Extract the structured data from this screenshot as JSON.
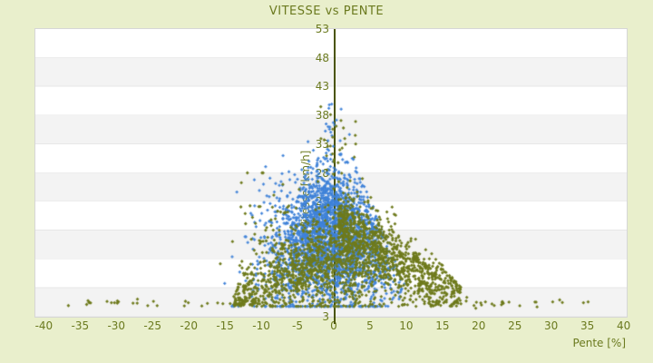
{
  "page": {
    "background": "#e9efcc"
  },
  "chart_data": {
    "type": "scatter",
    "title": "VITESSE vs PENTE",
    "xlabel": "Pente [%]",
    "ylabel": "Vitesse [km/h]",
    "x_range": [
      -41.3,
      40.3
    ],
    "y_range": [
      3,
      53
    ],
    "x_ticks": [
      -40,
      -35,
      -30,
      -25,
      -20,
      -15,
      -10,
      -5,
      0,
      5,
      10,
      15,
      20,
      25,
      30,
      35,
      40
    ],
    "y_ticks": [
      53,
      48,
      43,
      38,
      33,
      28,
      23,
      18,
      13,
      8,
      3
    ],
    "axis_line_x": 0,
    "grid": "horizontal-stripes-per-5-kmh",
    "legend": "none",
    "seed": 1337,
    "colors": {
      "background": "#e9efcc",
      "text": "#6b7a1f",
      "axis_line": "#4a5404",
      "stripe_light": "#ffffff",
      "stripe_dark": "#f3f3f3",
      "stripe_line": "#e7e7e7",
      "plot_border": "#d6d6d6",
      "series_blue": "#3f82d8",
      "series_olive": "#6e7a1c"
    },
    "series": [
      {
        "name": "serie-bleue",
        "color": "#3f82d8",
        "marker": "cross",
        "marker_size": 3.2,
        "components": [
          {
            "kind": "cone",
            "count": 2600,
            "x_center": -0.8,
            "y_mean": 16,
            "y_sd": 6.0,
            "y_min": 4.8,
            "y_max": 41.5,
            "w_top": 42,
            "w_factor": 0.33,
            "w_min": 1.0,
            "x_spread": 0.45,
            "clip_lo": -1.45,
            "clip_hi": 0.95
          },
          {
            "kind": "blob",
            "count": 45,
            "x_mean": -8.5,
            "x_sd": 2.2,
            "y_mean": 23,
            "y_sd": 3.5,
            "x_min": -13.5,
            "x_max": -4,
            "y_min": 15,
            "y_max": 31
          },
          {
            "kind": "blob",
            "count": 10,
            "x_mean": -0.2,
            "x_sd": 1.0,
            "y_mean": 36,
            "y_sd": 2.5,
            "x_min": -3,
            "x_max": 3,
            "y_min": 32,
            "y_max": 41.5
          }
        ]
      },
      {
        "name": "serie-olive",
        "color": "#6e7a1c",
        "marker": "diamond",
        "marker_size": 3.8,
        "components": [
          {
            "kind": "cone",
            "count": 850,
            "x_center": 0.8,
            "y_mean": 12.5,
            "y_sd": 4.6,
            "y_min": 4.8,
            "y_max": 39.5,
            "w_top": 40,
            "w_factor": 0.38,
            "w_min": 1.2,
            "x_spread": 0.5,
            "clip_lo": -1.25,
            "clip_hi": 1.05
          },
          {
            "kind": "band",
            "count": 780,
            "x_min": 0.5,
            "x_max": 17.5,
            "x_skew": 1.35,
            "intercept": 19.5,
            "slope": -0.78,
            "noise": 2.6,
            "y_min": 4.8,
            "cap_a": 36,
            "cap_b": -1.6
          },
          {
            "kind": "band",
            "count": 400,
            "x_min": -14,
            "x_max": -2,
            "x_skew": 1.0,
            "intercept": 13.5,
            "slope": 0.55,
            "noise": 2.2,
            "y_min": 4.8,
            "cap_a": 36,
            "cap_b": 1.6
          },
          {
            "kind": "row",
            "count": 85,
            "x_min": -37.5,
            "x_max": 38,
            "y_mean": 5.4,
            "y_sd": 0.35
          },
          {
            "kind": "blob",
            "count": 28,
            "x_mean": 0.8,
            "x_sd": 1.6,
            "y_mean": 33,
            "y_sd": 3.2,
            "x_min": -3,
            "x_max": 5,
            "y_min": 27,
            "y_max": 39.5
          },
          {
            "kind": "blob",
            "count": 40,
            "x_mean": -9,
            "x_sd": 2.6,
            "y_mean": 21,
            "y_sd": 4,
            "x_min": -16,
            "x_max": -4,
            "y_min": 12,
            "y_max": 28
          }
        ]
      }
    ]
  }
}
